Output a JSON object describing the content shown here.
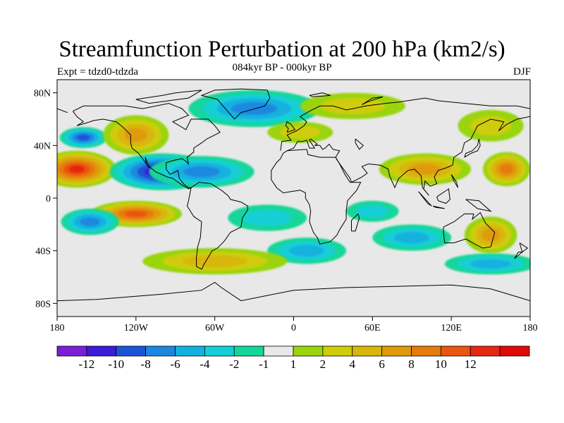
{
  "title": "Streamfunction Perturbation at 200 hPa (km2/s)",
  "subtitle": "084kyr BP - 000kyr BP",
  "left_label": "Expt = tdzd0-tdzda",
  "right_label": "DJF",
  "axes": {
    "x_ticks": [
      "180",
      "120W",
      "60W",
      "0",
      "60E",
      "120E",
      "180"
    ],
    "y_ticks": [
      "80N",
      "40N",
      "0",
      "40S",
      "80S"
    ]
  },
  "colorbar": {
    "colors": [
      "#7b1fd6",
      "#3c1ad8",
      "#1a55d6",
      "#1a88e0",
      "#12b1df",
      "#12cfd6",
      "#12d69a",
      "#e8e8e8",
      "#9ad40a",
      "#cfcc08",
      "#d8b60a",
      "#e09a0a",
      "#e67a0a",
      "#ea5510",
      "#e52810",
      "#e00808"
    ],
    "labels": [
      "-12",
      "-10",
      "-8",
      "-6",
      "-4",
      "-2",
      "-1",
      "1",
      "2",
      "4",
      "6",
      "8",
      "10",
      "12"
    ]
  },
  "field_blobs": [
    {
      "lon": -165,
      "lat": 22,
      "rx": 30,
      "ry": 14,
      "level": 12
    },
    {
      "lon": 162,
      "lat": 22,
      "rx": 18,
      "ry": 13,
      "level": 8
    },
    {
      "lon": -100,
      "lat": 20,
      "rx": 40,
      "ry": 14,
      "level": -12
    },
    {
      "lon": -70,
      "lat": 20,
      "rx": 40,
      "ry": 12,
      "level": -6
    },
    {
      "lon": -120,
      "lat": -12,
      "rx": 35,
      "ry": 10,
      "level": 10
    },
    {
      "lon": -155,
      "lat": -18,
      "rx": 22,
      "ry": 10,
      "level": -6
    },
    {
      "lon": -160,
      "lat": 46,
      "rx": 18,
      "ry": 8,
      "level": -8
    },
    {
      "lon": -120,
      "lat": 48,
      "rx": 25,
      "ry": 15,
      "level": 6
    },
    {
      "lon": -30,
      "lat": 68,
      "rx": 50,
      "ry": 14,
      "level": -6
    },
    {
      "lon": 5,
      "lat": 50,
      "rx": 25,
      "ry": 8,
      "level": 2
    },
    {
      "lon": 100,
      "lat": 22,
      "rx": 35,
      "ry": 12,
      "level": 6
    },
    {
      "lon": 45,
      "lat": 70,
      "rx": 40,
      "ry": 10,
      "level": 2
    },
    {
      "lon": 10,
      "lat": -40,
      "rx": 30,
      "ry": 10,
      "level": -4
    },
    {
      "lon": -60,
      "lat": -48,
      "rx": 55,
      "ry": 10,
      "level": 4
    },
    {
      "lon": 90,
      "lat": -30,
      "rx": 30,
      "ry": 10,
      "level": -4
    },
    {
      "lon": 150,
      "lat": -28,
      "rx": 20,
      "ry": 14,
      "level": 6
    },
    {
      "lon": 150,
      "lat": -50,
      "rx": 35,
      "ry": 8,
      "level": -4
    },
    {
      "lon": 150,
      "lat": 55,
      "rx": 25,
      "ry": 12,
      "level": 2
    },
    {
      "lon": -20,
      "lat": -15,
      "rx": 30,
      "ry": 10,
      "level": -2
    },
    {
      "lon": 60,
      "lat": -10,
      "rx": 20,
      "ry": 8,
      "level": -2
    }
  ]
}
